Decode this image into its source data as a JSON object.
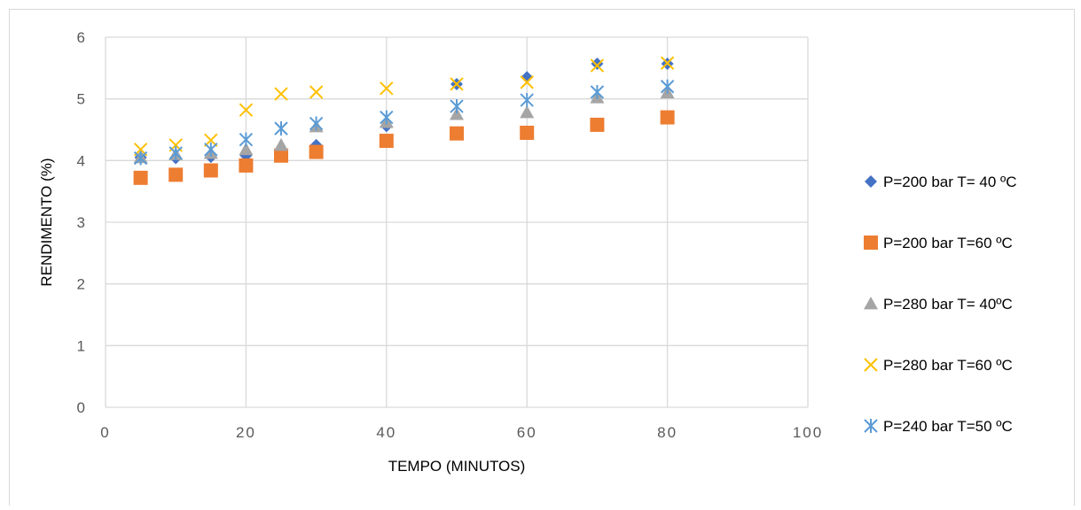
{
  "chart_data": {
    "type": "scatter",
    "title": "",
    "xlabel": "TEMPO (MINUTOS)",
    "ylabel": "RENDIMENTO (%)",
    "xlim": [
      0,
      100
    ],
    "ylim": [
      0,
      6
    ],
    "x_ticks": [
      0,
      20,
      40,
      60,
      80,
      100
    ],
    "x_tick_labels": [
      "0",
      "20",
      "40",
      "60",
      "80",
      "100"
    ],
    "y_ticks": [
      0,
      1,
      2,
      3,
      4,
      5,
      6
    ],
    "y_tick_labels": [
      "0",
      "1",
      "2",
      "3",
      "4",
      "5",
      "6"
    ],
    "grid": true,
    "legend_position": "right",
    "series": [
      {
        "name": "P=200 bar T= 40 ºC",
        "marker": "diamond",
        "color": "#4472c4",
        "x": [
          5,
          10,
          15,
          20,
          25,
          30,
          40,
          50,
          60,
          70,
          80
        ],
        "y": [
          4.05,
          4.04,
          4.06,
          4.08,
          4.15,
          4.25,
          4.56,
          5.24,
          5.35,
          5.57,
          5.57
        ]
      },
      {
        "name": "P=200 bar T=60 ºC",
        "marker": "square",
        "color": "#ed7d31",
        "x": [
          5,
          10,
          15,
          20,
          25,
          30,
          40,
          50,
          60,
          70,
          80
        ],
        "y": [
          3.72,
          3.77,
          3.84,
          3.92,
          4.08,
          4.14,
          4.32,
          4.44,
          4.45,
          4.58,
          4.7
        ]
      },
      {
        "name": "P=280 bar T= 40ºC",
        "marker": "triangle",
        "color": "#a5a5a5",
        "x": [
          5,
          10,
          15,
          20,
          25,
          30,
          40,
          50,
          60,
          70,
          80
        ],
        "y": [
          4.05,
          4.1,
          4.12,
          4.18,
          4.25,
          4.55,
          4.62,
          4.75,
          4.78,
          5.02,
          5.1
        ]
      },
      {
        "name": "P=280 bar T=60 ºC",
        "marker": "x",
        "color": "#ffc000",
        "x": [
          5,
          10,
          15,
          20,
          25,
          30,
          40,
          50,
          60,
          70,
          80
        ],
        "y": [
          4.18,
          4.25,
          4.33,
          4.82,
          5.08,
          5.11,
          5.17,
          5.24,
          5.27,
          5.54,
          5.58
        ]
      },
      {
        "name": "P=240 bar T=50 ºC",
        "marker": "star",
        "color": "#5b9bd5",
        "x": [
          5,
          10,
          15,
          20,
          25,
          30,
          40,
          50,
          60,
          70,
          80
        ],
        "y": [
          4.04,
          4.12,
          4.18,
          4.34,
          4.52,
          4.6,
          4.7,
          4.88,
          4.98,
          5.11,
          5.2
        ]
      }
    ]
  }
}
